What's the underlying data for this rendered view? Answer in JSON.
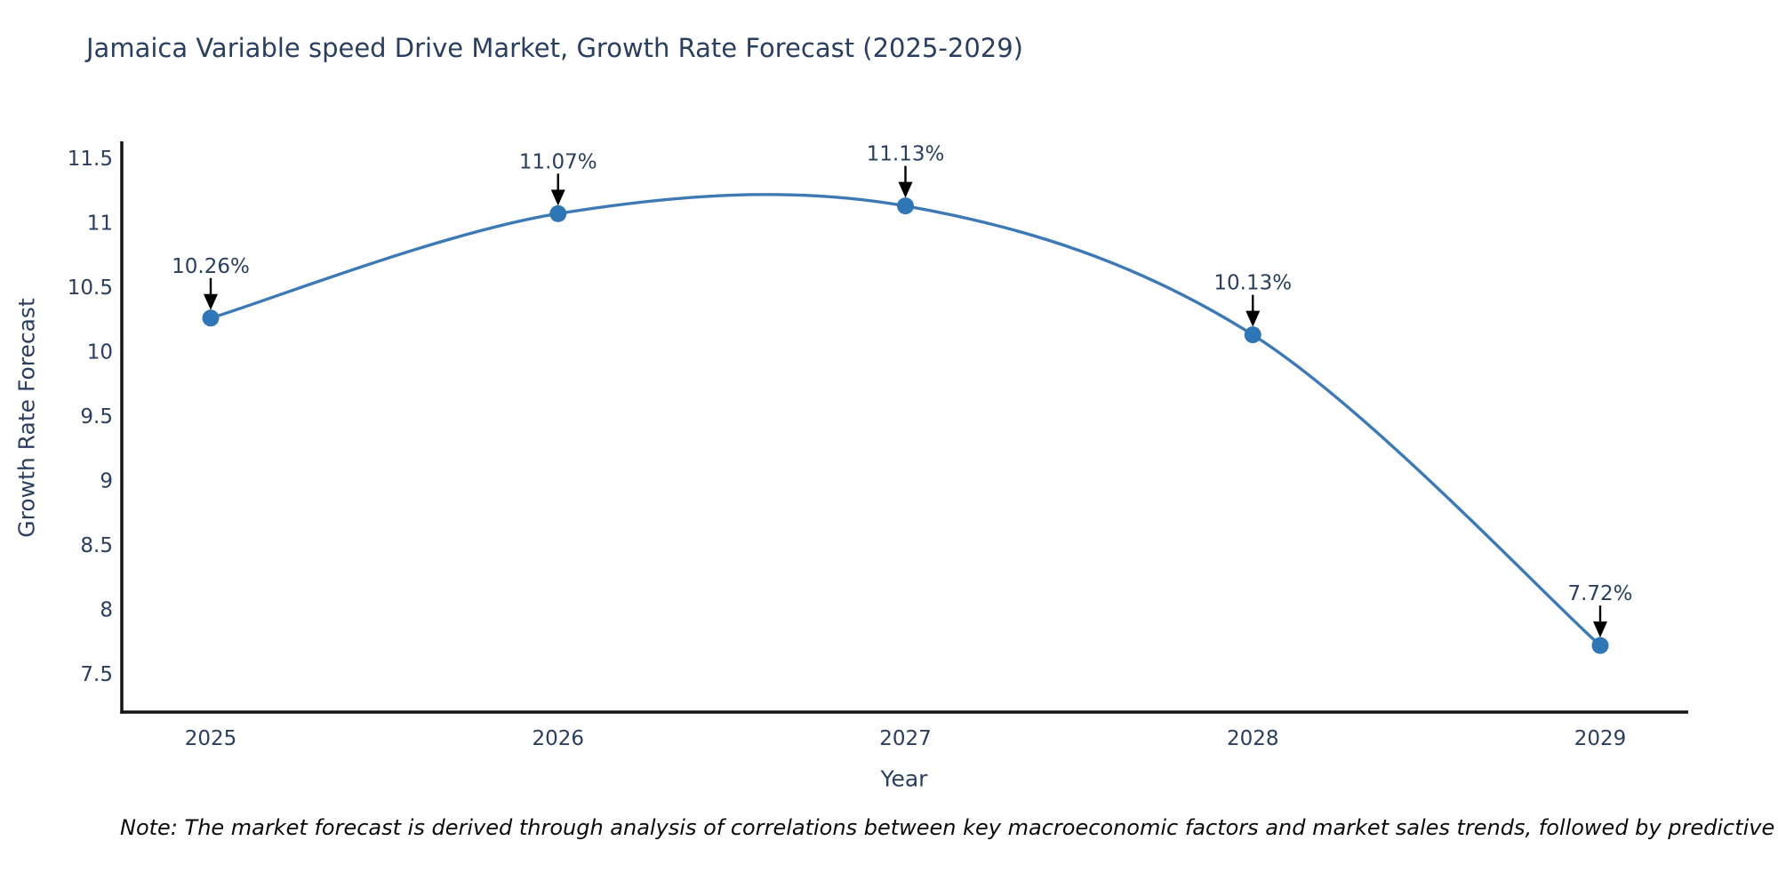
{
  "chart_data": {
    "type": "line",
    "title": "Jamaica Variable speed Drive Market, Growth Rate Forecast (2025-2029)",
    "xlabel": "Year",
    "ylabel": "Growth Rate Forecast",
    "x": [
      2025,
      2026,
      2027,
      2028,
      2029
    ],
    "series": [
      {
        "name": "Growth Rate Forecast",
        "values": [
          10.26,
          11.07,
          11.13,
          10.13,
          7.72
        ],
        "point_labels": [
          "10.26%",
          "11.07%",
          "11.13%",
          "10.13%",
          "7.72%"
        ]
      }
    ],
    "yticks": [
      7.5,
      8,
      8.5,
      9,
      9.5,
      10,
      10.5,
      11,
      11.5
    ],
    "ylim": [
      7.21,
      11.62
    ],
    "grid": false,
    "legend": false,
    "line_shape": "spline",
    "colors": {
      "line": "#3d7ab5",
      "marker": "#2e76b5",
      "axis": "#141414",
      "text": "#2a3f5f",
      "annotation_arrow": "#000000"
    }
  },
  "footnote": "Note: The market forecast is derived through analysis of correlations between key macroeconomic factors and market sales trends, followed by predictive modeling to project future sales."
}
